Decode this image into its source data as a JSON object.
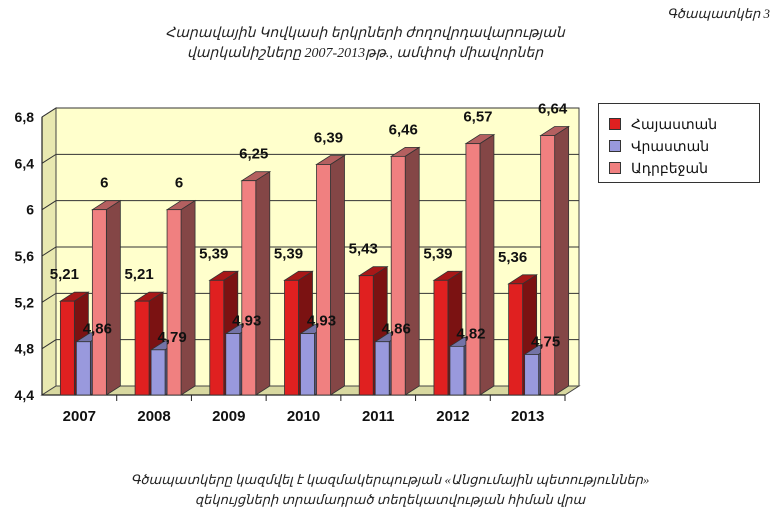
{
  "figure_label": "Գծապատկեր 3",
  "title_line1": "Հարավային Կովկասի երկրների ժողովրդավարության",
  "title_line2": "վարկանիշները 2007-2013թթ., ամփոփ միավորներ",
  "caption_line1": "Գծապատկերը կազմվել է  կազմակերպության «Անցումային պետություններ»",
  "caption_line2": "զեկույցների տրամադրած տեղեկատվության հիման վրա",
  "colors": {
    "plot_bg": "#ffffcc",
    "armenia": "#e02020",
    "georgia": "#9999dd",
    "azerbaijan": "#f08080"
  },
  "chart_data": {
    "type": "bar",
    "categories": [
      "2007",
      "2008",
      "2009",
      "2010",
      "2011",
      "2012",
      "2013"
    ],
    "series": [
      {
        "name": "Հայաստան",
        "values": [
          5.21,
          5.21,
          5.39,
          5.39,
          5.43,
          5.39,
          5.36
        ]
      },
      {
        "name": "Վրաստան",
        "values": [
          4.86,
          4.79,
          4.93,
          4.93,
          4.86,
          4.82,
          4.75
        ]
      },
      {
        "name": "Ադրբեջան",
        "values": [
          6,
          6,
          6.25,
          6.39,
          6.46,
          6.57,
          6.64
        ]
      }
    ],
    "yticks": [
      "4,4",
      "4,8",
      "5,2",
      "5,6",
      "6",
      "6,4",
      "6,8"
    ],
    "ylim": [
      4.4,
      6.8
    ],
    "grid": true,
    "legend": "right",
    "style": "3d-bar"
  }
}
